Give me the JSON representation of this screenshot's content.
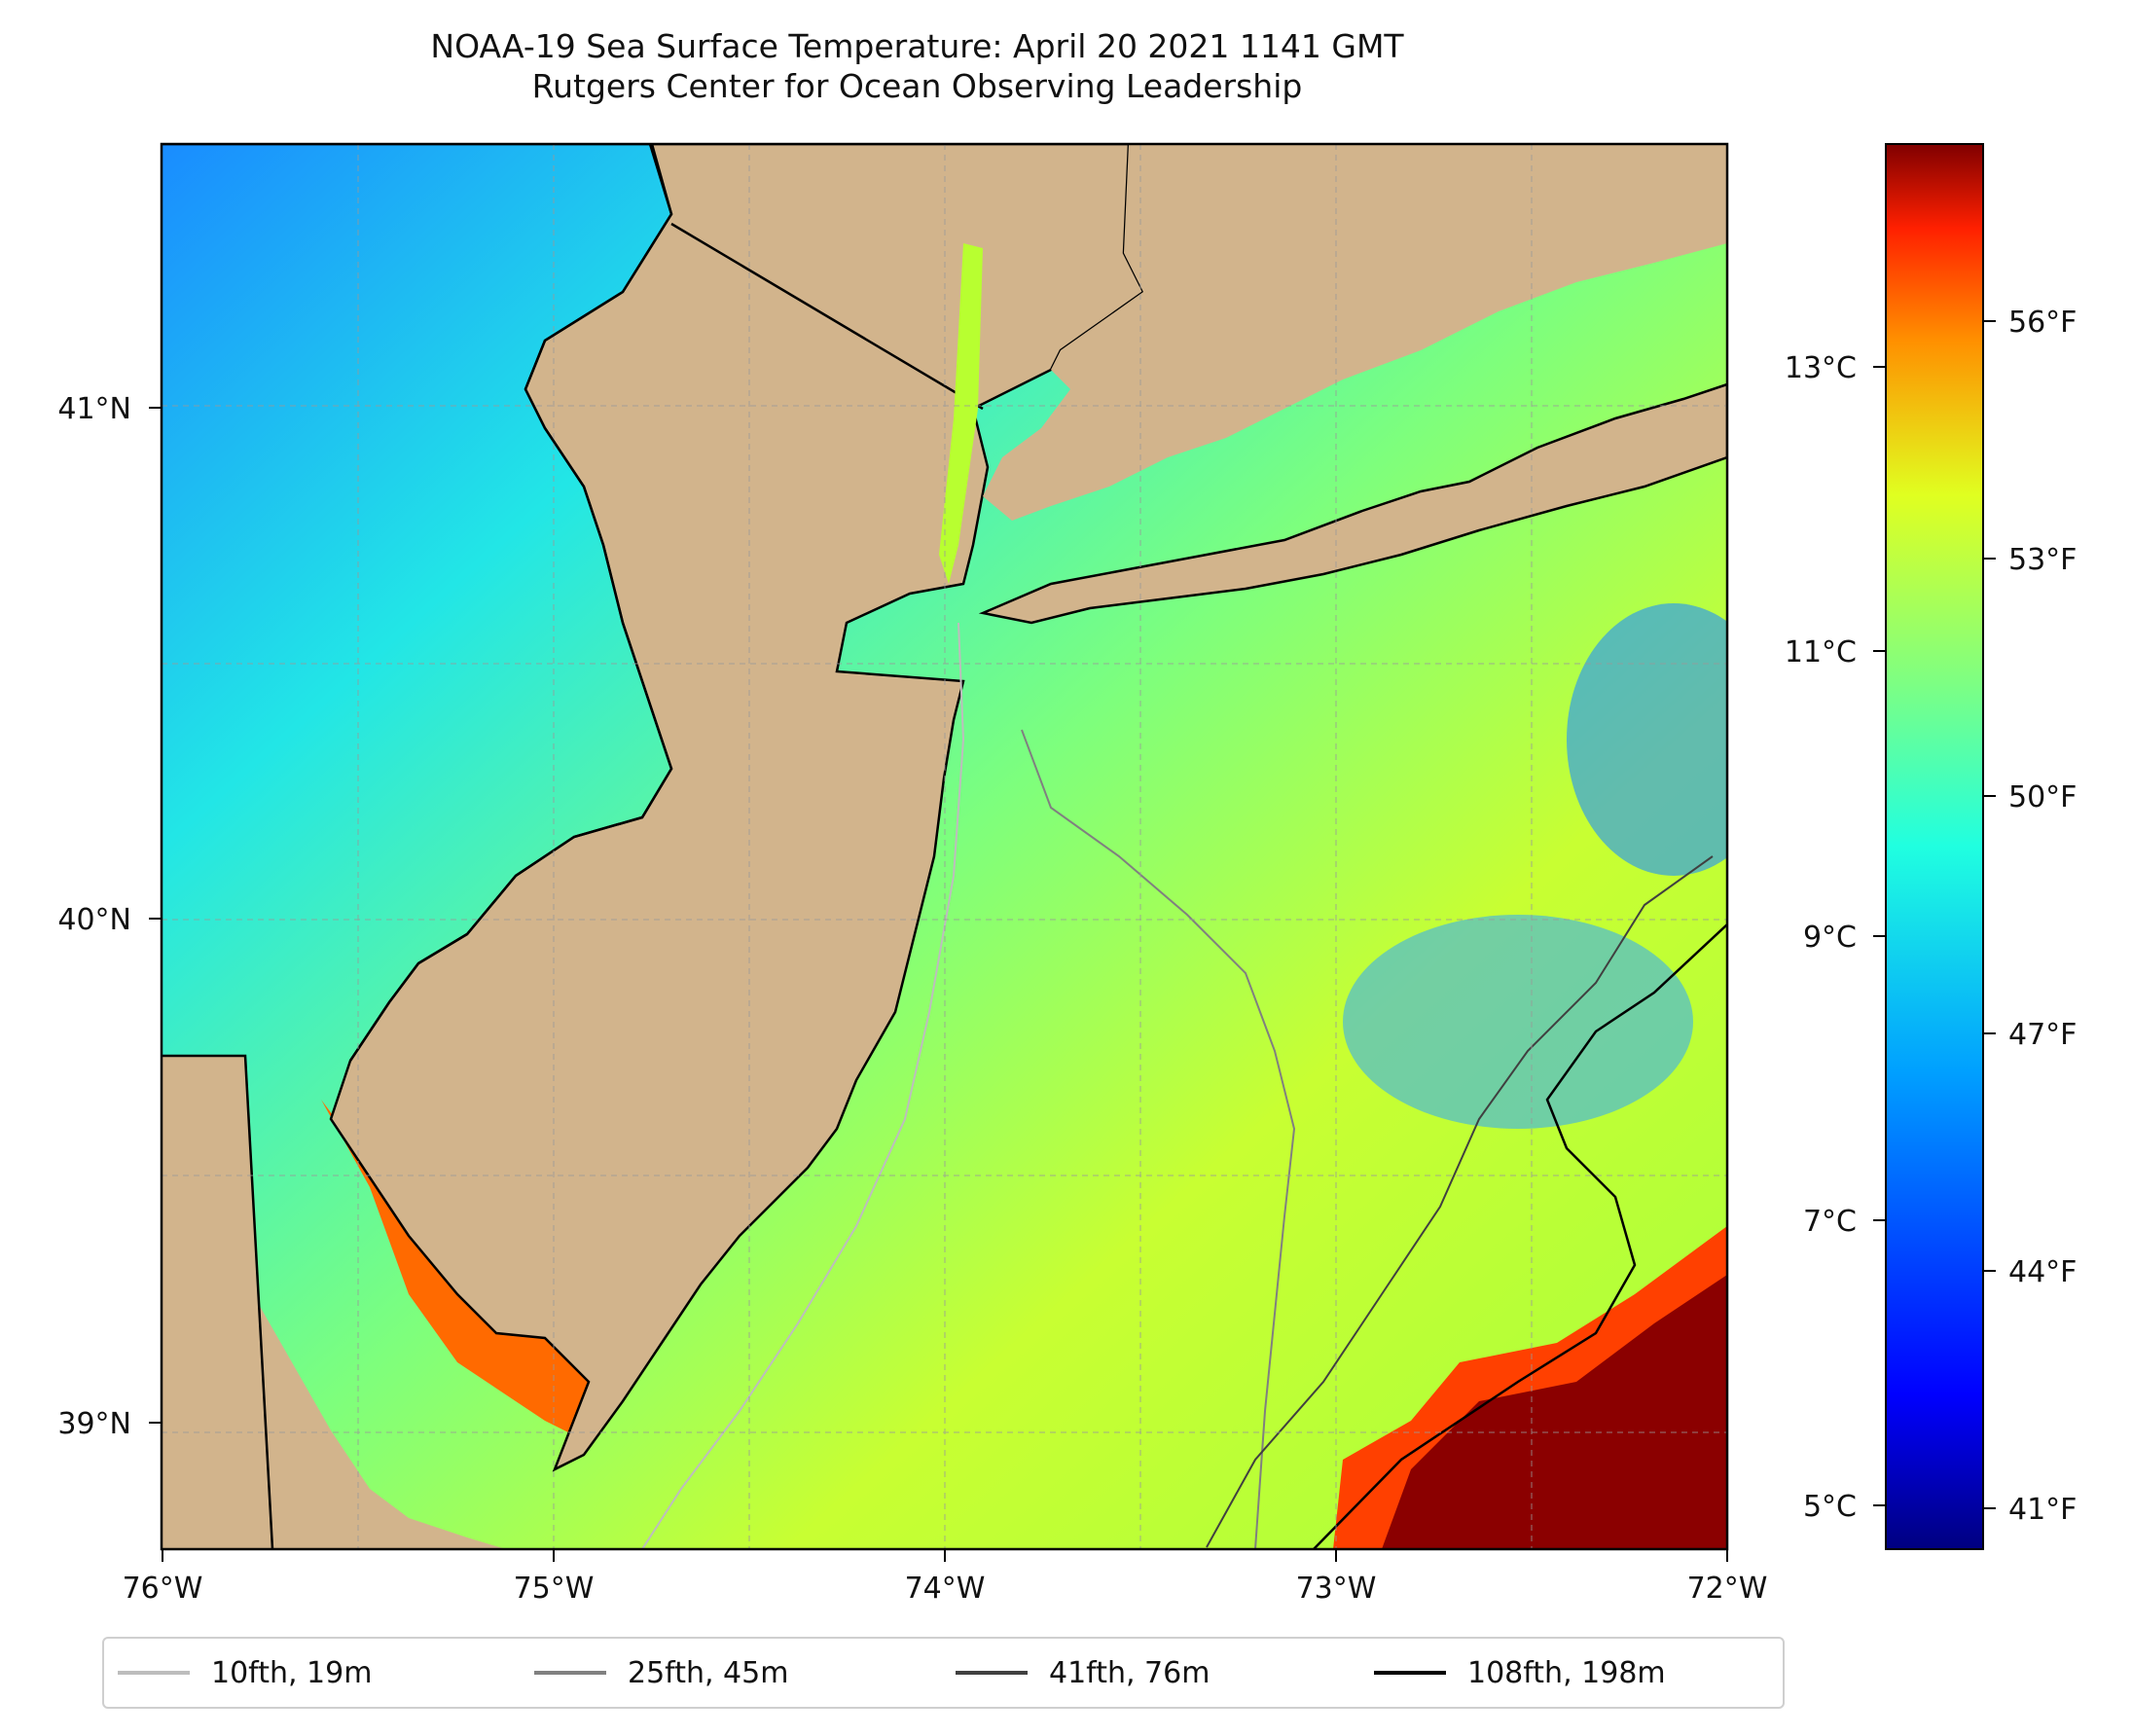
{
  "title": {
    "line1": "NOAA-19 Sea Surface Temperature: April 20 2021 1141 GMT",
    "line2": "Rutgers Center for Ocean Observing Leadership"
  },
  "axes": {
    "x_ticks": [
      "76°W",
      "75°W",
      "74°W",
      "73°W",
      "72°W"
    ],
    "y_ticks": [
      "41°N",
      "40°N",
      "39°N"
    ]
  },
  "colorbar": {
    "colormap": "jet",
    "celsius_ticks": [
      "13°C",
      "11°C",
      "9°C",
      "7°C",
      "5°C"
    ],
    "fahrenheit_ticks": [
      "56°F",
      "53°F",
      "50°F",
      "47°F",
      "44°F",
      "41°F"
    ]
  },
  "legend": [
    {
      "label": "10fth, 19m",
      "color": "#bdbdbd"
    },
    {
      "label": "25fth, 45m",
      "color": "#808080"
    },
    {
      "label": "41fth, 76m",
      "color": "#404040"
    },
    {
      "label": "108fth, 198m",
      "color": "#000000"
    }
  ],
  "colors": {
    "land": "#d2b48c",
    "coast": "#000000",
    "grid": "#999999"
  }
}
